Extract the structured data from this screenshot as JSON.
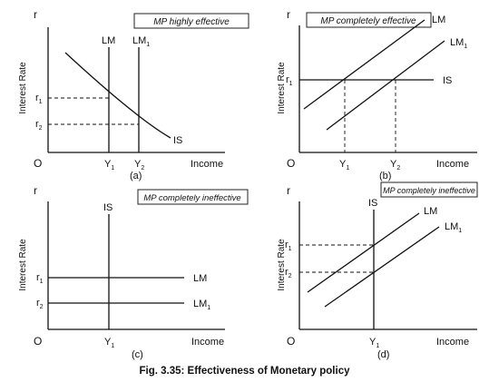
{
  "caption": "Fig. 3.35: Effectiveness of Monetary policy",
  "panels": {
    "a": {
      "title": "MP highly effective",
      "r_axis": "r",
      "y_axis_label": "Interest Rate",
      "x_axis_label": "Income",
      "origin": "O",
      "panel_label": "(a)",
      "lm1": "LM",
      "lm2": "LM",
      "lm2_sub": "1",
      "is": "IS",
      "r1": "r",
      "r1_sub": "1",
      "r2": "r",
      "r2_sub": "2",
      "y1": "Y",
      "y1_sub": "1",
      "y2": "Y",
      "y2_sub": "2"
    },
    "b": {
      "title": "MP completely effective",
      "r_axis": "r",
      "y_axis_label": "Interest Rate",
      "x_axis_label": "Income",
      "origin": "O",
      "panel_label": "(b)",
      "lm1": "LM",
      "lm2": "LM",
      "lm2_sub": "1",
      "is": "IS",
      "r1": "r",
      "r1_sub": "1",
      "y1": "Y",
      "y1_sub": "1",
      "y2": "Y",
      "y2_sub": "2"
    },
    "c": {
      "title": "MP completely ineffective",
      "r_axis": "r",
      "y_axis_label": "Interest Rate",
      "x_axis_label": "Income",
      "origin": "O",
      "panel_label": "(c)",
      "lm1": "LM",
      "lm2": "LM",
      "lm2_sub": "1",
      "is": "IS",
      "r1": "r",
      "r1_sub": "1",
      "r2": "r",
      "r2_sub": "2",
      "y1": "Y",
      "y1_sub": "1"
    },
    "d": {
      "title": "MP completely ineffective",
      "r_axis": "r",
      "y_axis_label": "Interest Rate",
      "x_axis_label": "Income",
      "origin": "O",
      "panel_label": "(d)",
      "lm1": "LM",
      "lm2": "LM",
      "lm2_sub": "1",
      "is": "IS",
      "r1": "r",
      "r1_sub": "1",
      "r2": "r",
      "r2_sub": "2",
      "y1": "Y",
      "y1_sub": "1"
    }
  }
}
